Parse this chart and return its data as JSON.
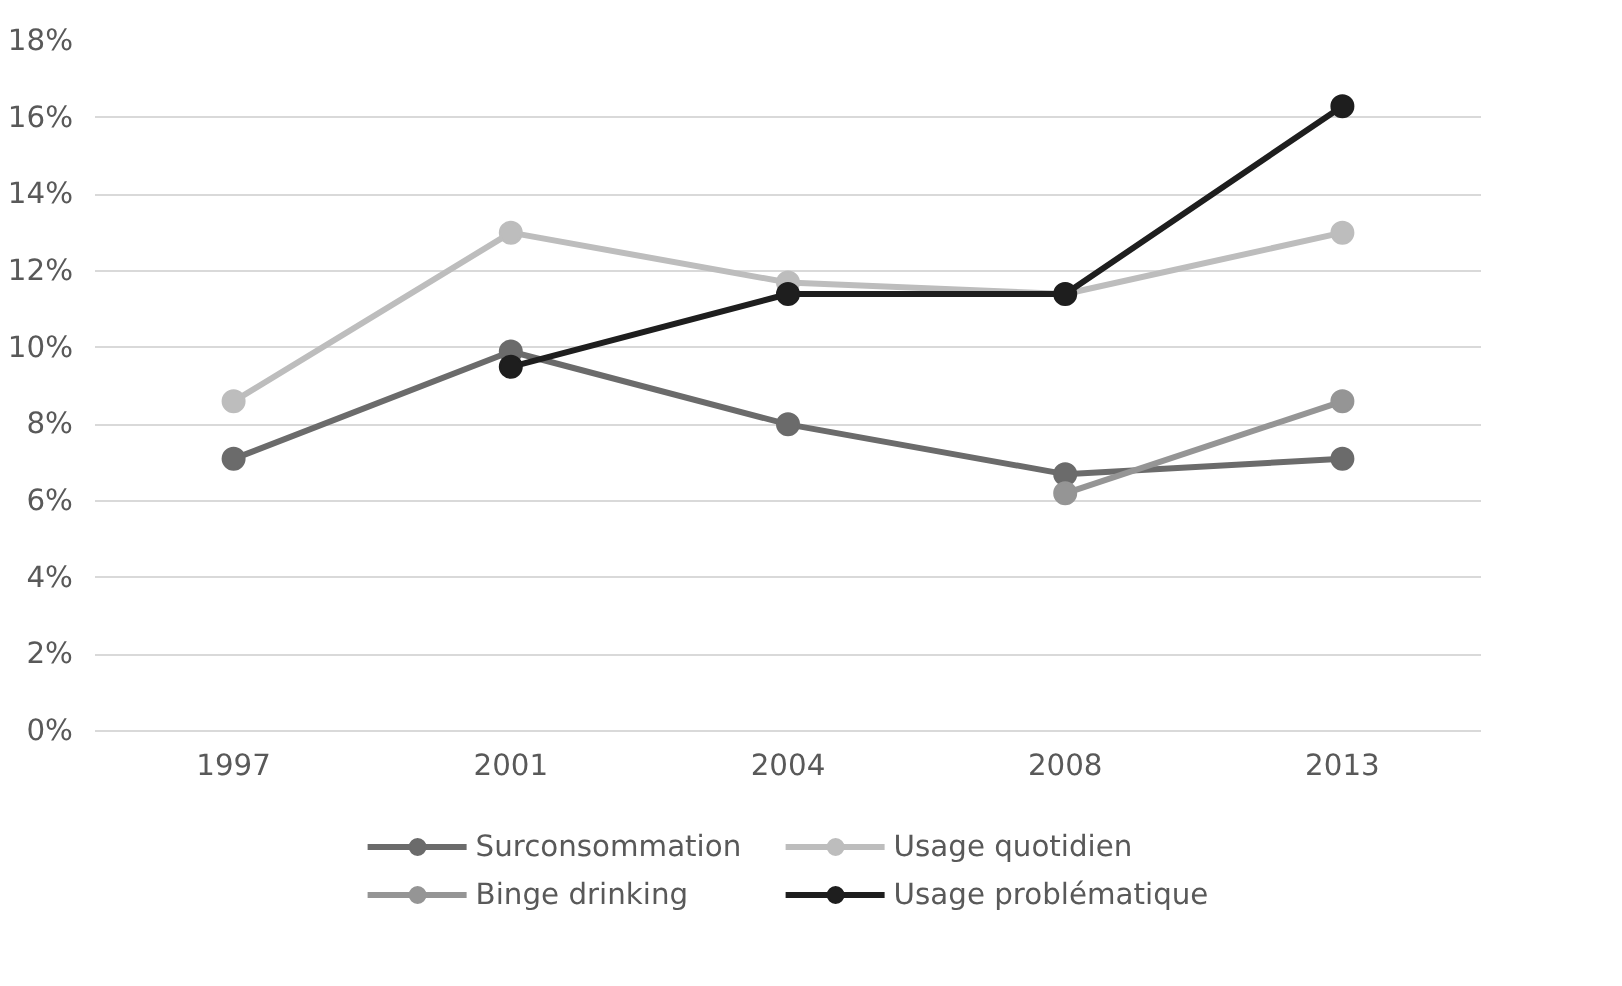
{
  "chart_data": {
    "type": "line",
    "categories": [
      "1997",
      "2001",
      "2004",
      "2008",
      "2013"
    ],
    "series": [
      {
        "name": "Surconsommation",
        "color": "#6b6b6b",
        "values": [
          7.1,
          9.9,
          8.0,
          6.7,
          7.1
        ]
      },
      {
        "name": "Usage quotidien",
        "color": "#bdbdbd",
        "values": [
          8.6,
          13.0,
          11.7,
          11.4,
          13.0
        ]
      },
      {
        "name": "Binge drinking",
        "color": "#959595",
        "values": [
          null,
          null,
          null,
          6.2,
          8.6
        ]
      },
      {
        "name": "Usage problématique",
        "color": "#1e1e1e",
        "values": [
          null,
          9.5,
          11.4,
          11.4,
          16.3
        ]
      }
    ],
    "ylim": [
      0,
      18
    ],
    "yticks": [
      {
        "value": 0,
        "label": "0%"
      },
      {
        "value": 2,
        "label": "2%"
      },
      {
        "value": 4,
        "label": "4%"
      },
      {
        "value": 6,
        "label": "6%"
      },
      {
        "value": 8,
        "label": "8%"
      },
      {
        "value": 10,
        "label": "10%"
      },
      {
        "value": 12,
        "label": "12%"
      },
      {
        "value": 14,
        "label": "14%"
      },
      {
        "value": 16,
        "label": "16%"
      },
      {
        "value": 18,
        "label": "18%"
      }
    ],
    "grid": "y",
    "legend": "bottom",
    "marker": "circle",
    "line_style": "solid"
  }
}
